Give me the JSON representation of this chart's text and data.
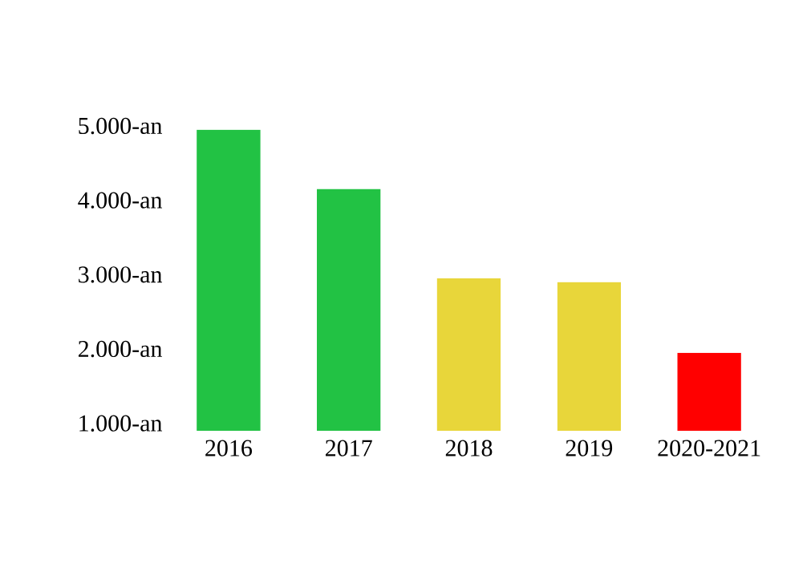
{
  "chart_data": {
    "type": "bar",
    "categories": [
      "2016",
      "2017",
      "2018",
      "2019",
      "2020-2021"
    ],
    "values": [
      4950,
      4150,
      2950,
      2900,
      1950
    ],
    "colors": [
      "#22c244",
      "#22c244",
      "#e8d63a",
      "#e8d63a",
      "#ff0000"
    ],
    "ylim": [
      900,
      5000
    ],
    "yticks": [
      {
        "value": 1000,
        "label": "1.000-an"
      },
      {
        "value": 2000,
        "label": "2.000-an"
      },
      {
        "value": 3000,
        "label": "3.000-an"
      },
      {
        "value": 4000,
        "label": "4.000-an"
      },
      {
        "value": 5000,
        "label": "5.000-an"
      }
    ],
    "grid": false
  }
}
